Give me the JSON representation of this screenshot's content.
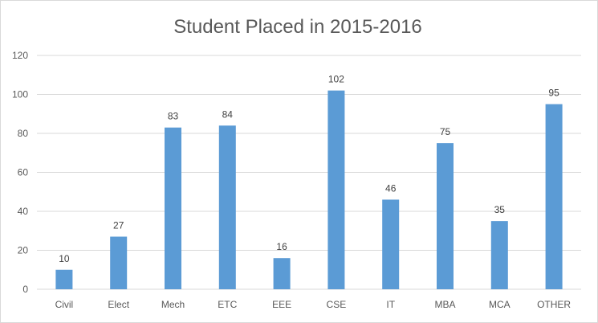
{
  "chart_data": {
    "type": "bar",
    "title": "Student Placed in 2015-2016",
    "xlabel": "",
    "ylabel": "",
    "categories": [
      "Civil",
      "Elect",
      "Mech",
      "ETC",
      "EEE",
      "CSE",
      "IT",
      "MBA",
      "MCA",
      "OTHER"
    ],
    "values": [
      10,
      27,
      83,
      84,
      16,
      102,
      46,
      75,
      35,
      95
    ],
    "ylim": [
      0,
      120
    ],
    "yticks": [
      0,
      20,
      40,
      60,
      80,
      100,
      120
    ],
    "grid": true,
    "legend": "none",
    "bar_color": "#5b9bd5",
    "grid_color": "#d9d9d9",
    "data_labels": true
  }
}
